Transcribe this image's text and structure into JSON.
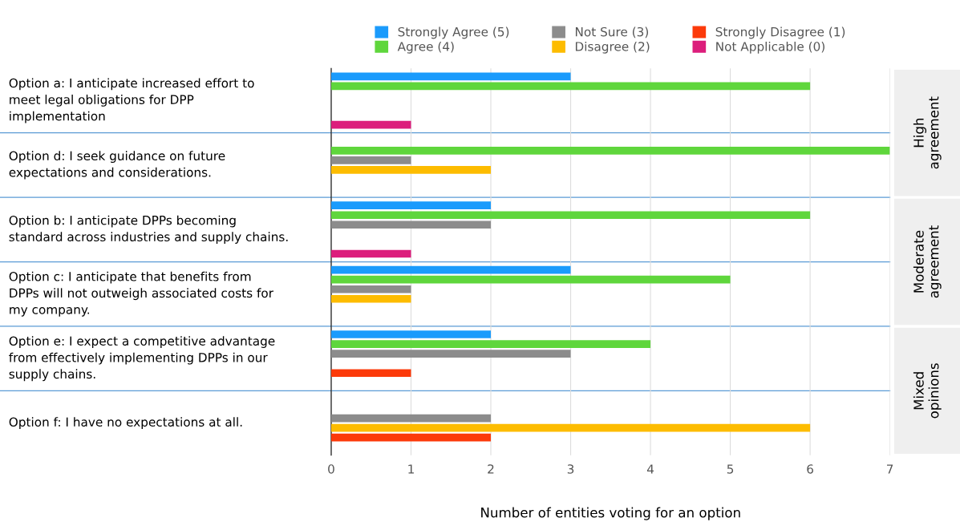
{
  "chart_data": {
    "type": "bar",
    "orientation": "horizontal",
    "categories": [
      "Option a: I anticipate increased effort to\nmeet legal obligations for DPP\nimplementation",
      "Option d: I seek guidance on future\nexpectations and considerations.",
      "Option b: I anticipate DPPs becoming\nstandard across industries and supply chains.",
      "Option c: I anticipate that benefits from\nDPPs will not outweigh associated costs for\nmy company.",
      "Option e: I expect a competitive advantage\nfrom effectively implementing DPPs in our\nsupply chains.",
      "Option f: I have no expectations at all."
    ],
    "series": [
      {
        "name": "Strongly Agree (5)",
        "color": "#1a9bfc",
        "values": [
          3,
          0,
          2,
          3,
          2,
          0
        ]
      },
      {
        "name": "Agree (4)",
        "color": "#5fd63c",
        "values": [
          6,
          7,
          6,
          5,
          4,
          0
        ]
      },
      {
        "name": "Not Sure (3)",
        "color": "#8c8c8c",
        "values": [
          0,
          1,
          2,
          1,
          3,
          2
        ]
      },
      {
        "name": "Disagree (2)",
        "color": "#fdbc00",
        "values": [
          0,
          2,
          0,
          1,
          0,
          6
        ]
      },
      {
        "name": "Strongly Disagree (1)",
        "color": "#fc3a0a",
        "values": [
          0,
          0,
          0,
          0,
          1,
          2
        ]
      },
      {
        "name": "Not Applicable (0)",
        "color": "#dc1e7c",
        "values": [
          1,
          0,
          1,
          0,
          0,
          0
        ]
      }
    ],
    "xlabel": "Number of entities voting for an option",
    "xlim": [
      0,
      7
    ],
    "xticks": [
      0,
      1,
      2,
      3,
      4,
      5,
      6,
      7
    ],
    "grid": "x",
    "legend": "top",
    "annotations": [
      "High\nagreement",
      "Moderate\nagreement",
      "Mixed\nopinions"
    ]
  }
}
